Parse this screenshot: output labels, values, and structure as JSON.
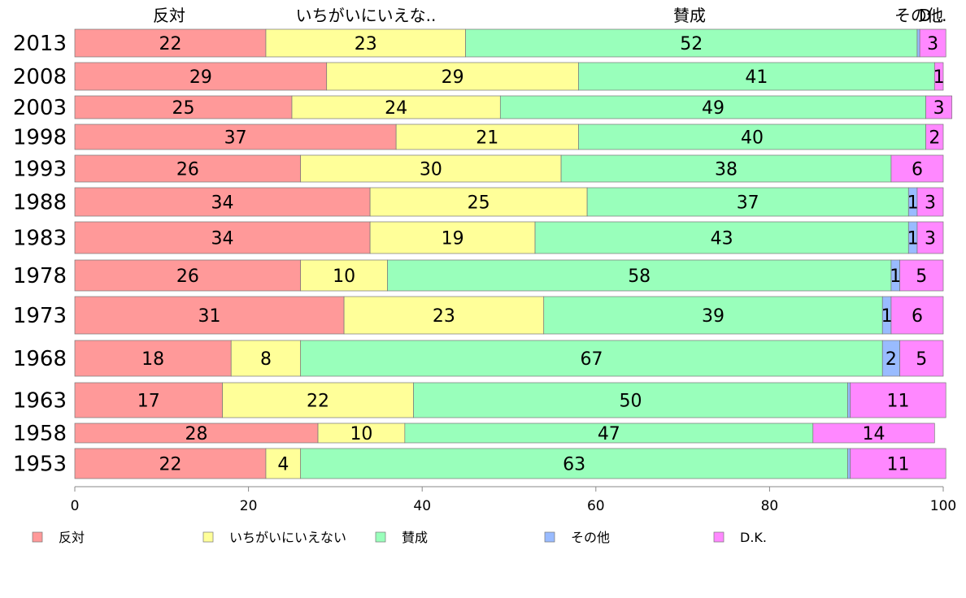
{
  "chart_data": {
    "type": "bar",
    "orientation": "horizontal",
    "stacked": true,
    "header_labels": [
      "反対",
      "いちがいにいえな..",
      "賛成",
      "その他",
      "D..."
    ],
    "categories": [
      "2013",
      "2008",
      "2003",
      "1998",
      "1993",
      "1988",
      "1983",
      "1978",
      "1973",
      "1968",
      "1963",
      "1958",
      "1953"
    ],
    "series": [
      {
        "name": "反対",
        "color": "#ff9999",
        "values": [
          22,
          29,
          25,
          37,
          26,
          34,
          34,
          26,
          31,
          18,
          17,
          28,
          22
        ]
      },
      {
        "name": "いちがいにいえない",
        "color": "#ffff99",
        "values": [
          23,
          29,
          24,
          21,
          30,
          25,
          19,
          10,
          23,
          8,
          22,
          10,
          4
        ]
      },
      {
        "name": "賛成",
        "color": "#99ffbb",
        "values": [
          52,
          41,
          49,
          40,
          38,
          37,
          43,
          58,
          39,
          67,
          50,
          47,
          63
        ]
      },
      {
        "name": "その他",
        "color": "#99bbff",
        "values": [
          0.3,
          0,
          0,
          0,
          0,
          1,
          1,
          1,
          1,
          2,
          0.3,
          0,
          0.3
        ]
      },
      {
        "name": "D.K.",
        "color": "#ff88ff",
        "values": [
          3,
          1,
          3,
          2,
          6,
          3,
          3,
          5,
          6,
          5,
          11,
          14,
          11
        ]
      }
    ],
    "xlim": [
      0,
      100
    ],
    "xticks": [
      "0",
      "20",
      "40",
      "60",
      "80",
      "100"
    ],
    "legend": "bottom",
    "grid": false
  }
}
